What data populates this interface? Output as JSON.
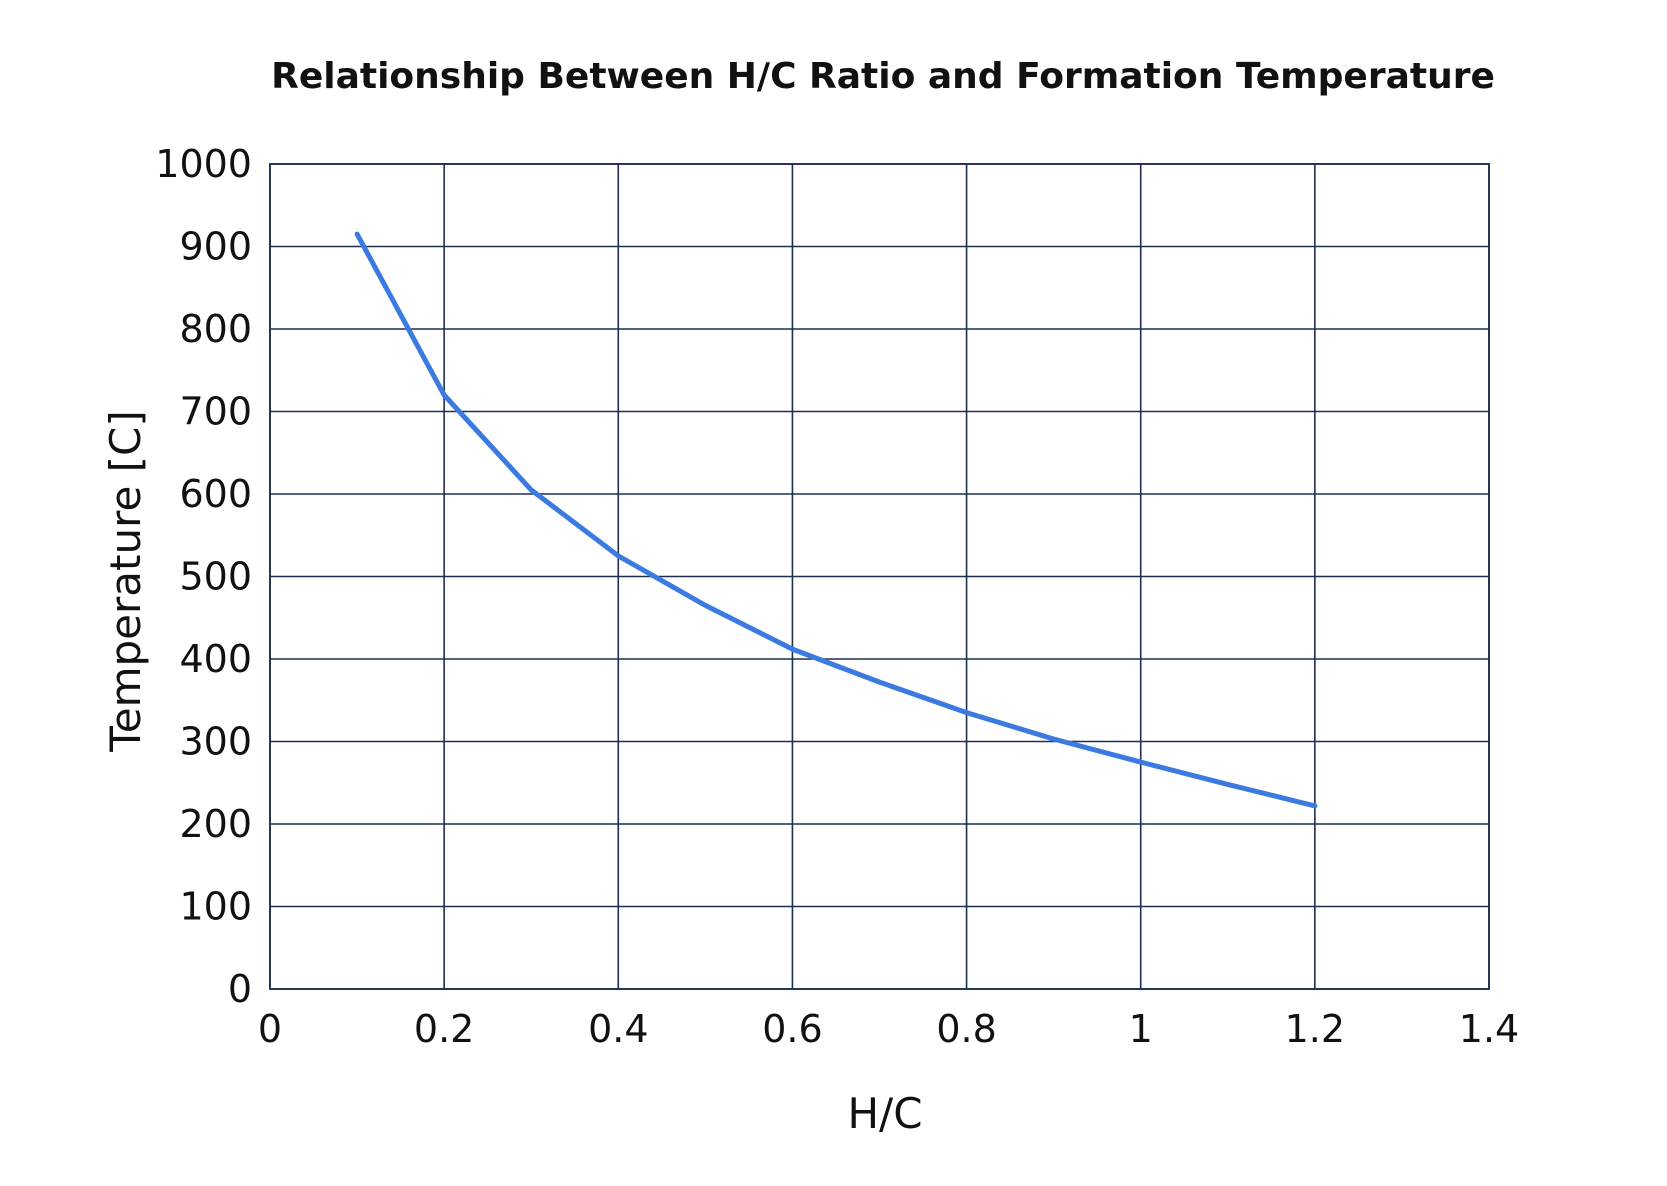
{
  "chart_data": {
    "type": "line",
    "title": "Relationship Between H/C Ratio and Formation Temperature",
    "xlabel": "H/C",
    "ylabel": "Temperature [C]",
    "xlim": [
      0,
      1.4
    ],
    "ylim": [
      0,
      1000
    ],
    "x_ticks": [
      "0",
      "0.2",
      "0.4",
      "0.6",
      "0.8",
      "1",
      "1.2",
      "1.4"
    ],
    "x_tick_values": [
      0,
      0.2,
      0.4,
      0.6,
      0.8,
      1.0,
      1.2,
      1.4
    ],
    "y_ticks": [
      "0",
      "100",
      "200",
      "300",
      "400",
      "500",
      "600",
      "700",
      "800",
      "900",
      "1000"
    ],
    "y_tick_values": [
      0,
      100,
      200,
      300,
      400,
      500,
      600,
      700,
      800,
      900,
      1000
    ],
    "grid": true,
    "legend": "none",
    "series": [
      {
        "color": "#3b7ae0",
        "x": [
          0.1,
          0.2,
          0.3,
          0.4,
          0.5,
          0.6,
          0.7,
          0.8,
          0.9,
          1.0,
          1.1,
          1.2
        ],
        "y": [
          915,
          720,
          605,
          525,
          465,
          412,
          372,
          335,
          303,
          275,
          248,
          222
        ]
      }
    ]
  }
}
